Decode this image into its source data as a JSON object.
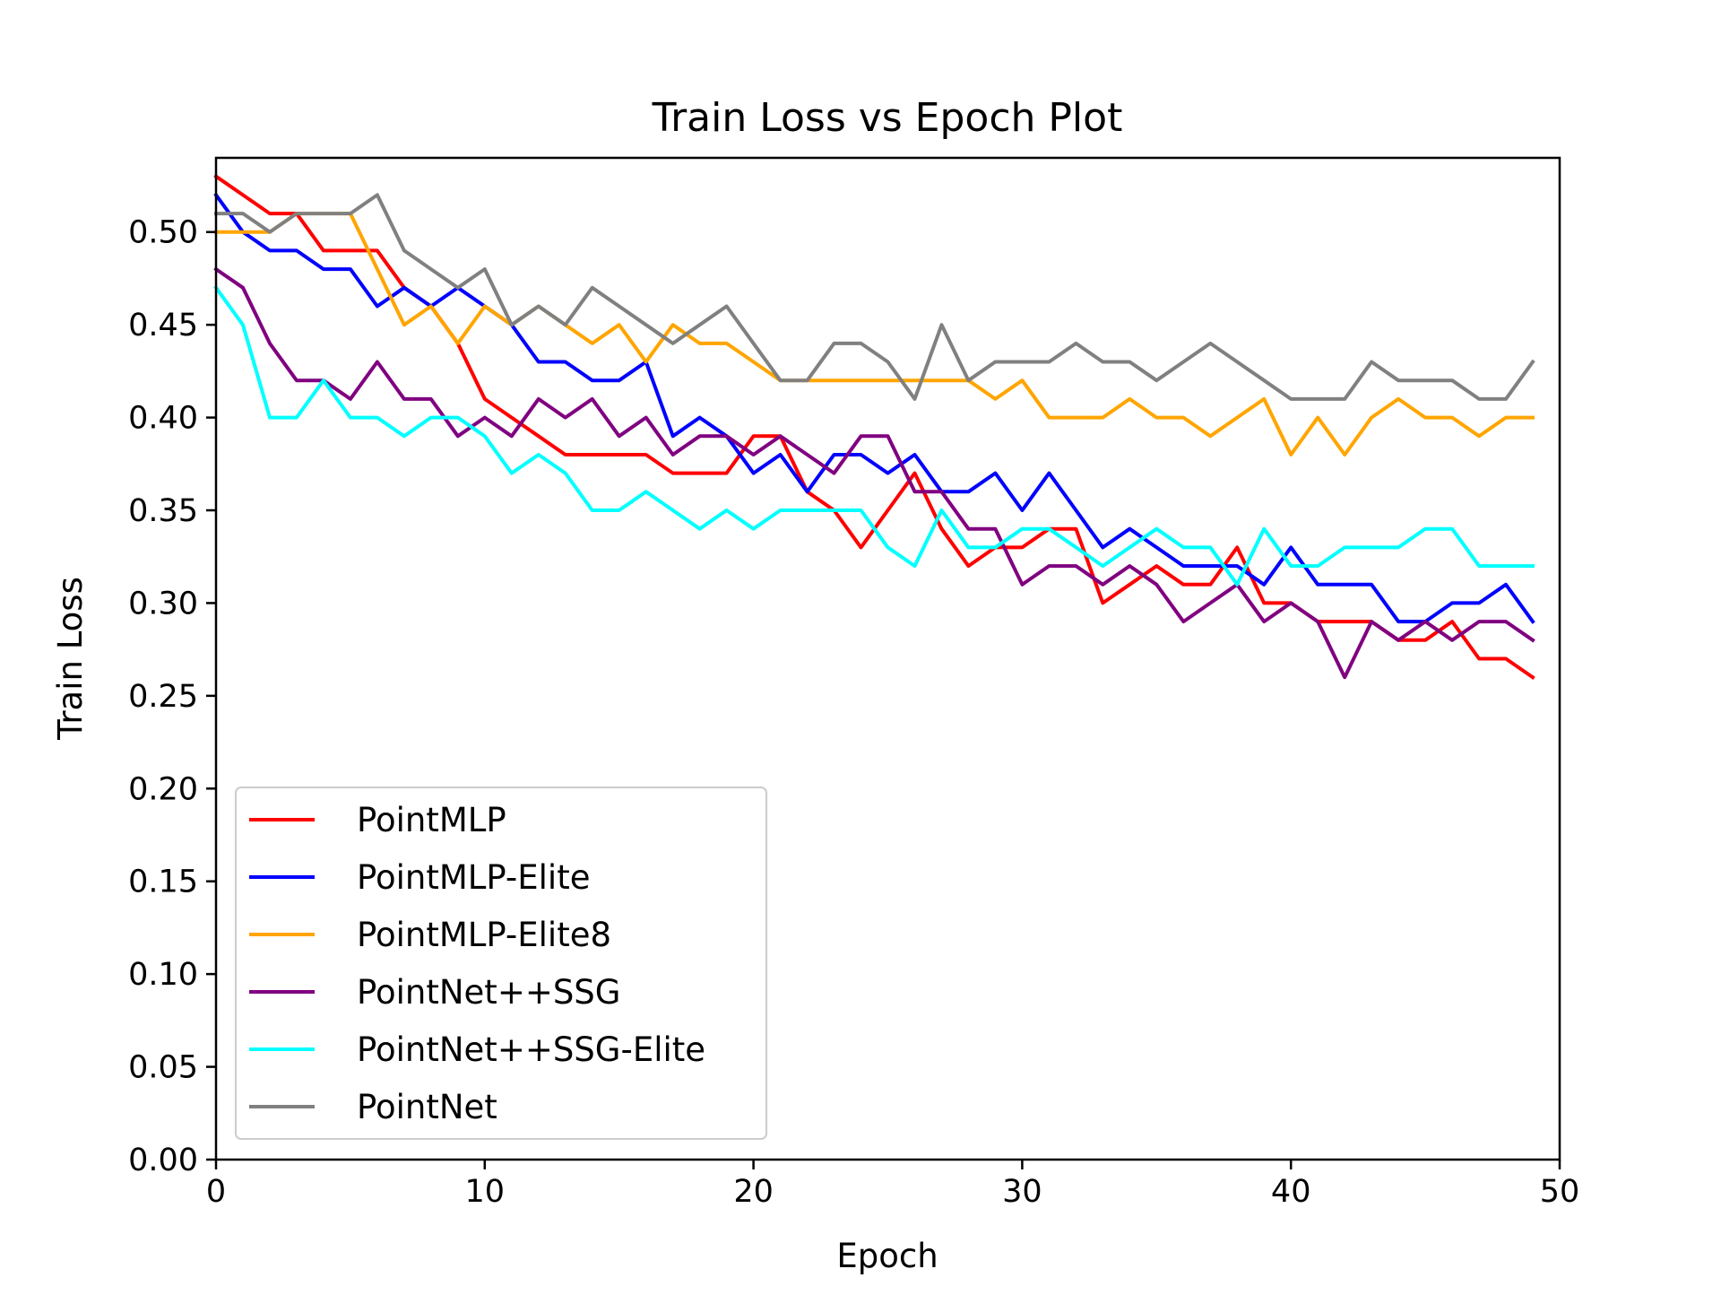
{
  "chart_data": {
    "type": "line",
    "title": "Train Loss vs Epoch Plot",
    "xlabel": "Epoch",
    "ylabel": "Train Loss",
    "xlim": [
      0,
      50
    ],
    "ylim": [
      0,
      0.54
    ],
    "xticks": [
      0,
      10,
      20,
      30,
      40,
      50
    ],
    "xtick_labels": [
      "0",
      "10",
      "20",
      "30",
      "40",
      "50"
    ],
    "yticks": [
      0,
      0.05,
      0.1,
      0.15,
      0.2,
      0.25,
      0.3,
      0.35,
      0.4,
      0.45,
      0.5
    ],
    "ytick_labels": [
      "0.00",
      "0.05",
      "0.10",
      "0.15",
      "0.20",
      "0.25",
      "0.30",
      "0.35",
      "0.40",
      "0.45",
      "0.50"
    ],
    "grid": false,
    "legend_position": "lower-left",
    "x": [
      0,
      1,
      2,
      3,
      4,
      5,
      6,
      7,
      8,
      9,
      10,
      11,
      12,
      13,
      14,
      15,
      16,
      17,
      18,
      19,
      20,
      21,
      22,
      23,
      24,
      25,
      26,
      27,
      28,
      29,
      30,
      31,
      32,
      33,
      34,
      35,
      36,
      37,
      38,
      39,
      40,
      41,
      42,
      43,
      44,
      45,
      46,
      47,
      48,
      49
    ],
    "series": [
      {
        "name": "PointMLP",
        "color": "#ff0000",
        "values": [
          0.53,
          0.52,
          0.51,
          0.51,
          0.49,
          0.49,
          0.49,
          0.47,
          0.46,
          0.44,
          0.41,
          0.4,
          0.39,
          0.38,
          0.38,
          0.38,
          0.38,
          0.37,
          0.37,
          0.37,
          0.39,
          0.39,
          0.36,
          0.35,
          0.33,
          0.35,
          0.37,
          0.34,
          0.32,
          0.33,
          0.33,
          0.34,
          0.34,
          0.3,
          0.31,
          0.32,
          0.31,
          0.31,
          0.33,
          0.3,
          0.3,
          0.29,
          0.29,
          0.29,
          0.28,
          0.28,
          0.29,
          0.27,
          0.27,
          0.26
        ]
      },
      {
        "name": "PointMLP-Elite",
        "color": "#0000ff",
        "values": [
          0.52,
          0.5,
          0.49,
          0.49,
          0.48,
          0.48,
          0.46,
          0.47,
          0.46,
          0.47,
          0.46,
          0.45,
          0.43,
          0.43,
          0.42,
          0.42,
          0.43,
          0.39,
          0.4,
          0.39,
          0.37,
          0.38,
          0.36,
          0.38,
          0.38,
          0.37,
          0.38,
          0.36,
          0.36,
          0.37,
          0.35,
          0.37,
          0.35,
          0.33,
          0.34,
          0.33,
          0.32,
          0.32,
          0.32,
          0.31,
          0.33,
          0.31,
          0.31,
          0.31,
          0.29,
          0.29,
          0.3,
          0.3,
          0.31,
          0.29
        ]
      },
      {
        "name": "PointMLP-Elite8",
        "color": "#ffa500",
        "values": [
          0.5,
          0.5,
          0.5,
          0.51,
          0.51,
          0.51,
          0.48,
          0.45,
          0.46,
          0.44,
          0.46,
          0.45,
          0.46,
          0.45,
          0.44,
          0.45,
          0.43,
          0.45,
          0.44,
          0.44,
          0.43,
          0.42,
          0.42,
          0.42,
          0.42,
          0.42,
          0.42,
          0.42,
          0.42,
          0.41,
          0.42,
          0.4,
          0.4,
          0.4,
          0.41,
          0.4,
          0.4,
          0.39,
          0.4,
          0.41,
          0.38,
          0.4,
          0.38,
          0.4,
          0.41,
          0.4,
          0.4,
          0.39,
          0.4,
          0.4
        ]
      },
      {
        "name": "PointNet++SSG",
        "color": "#800080",
        "values": [
          0.48,
          0.47,
          0.44,
          0.42,
          0.42,
          0.41,
          0.43,
          0.41,
          0.41,
          0.39,
          0.4,
          0.39,
          0.41,
          0.4,
          0.41,
          0.39,
          0.4,
          0.38,
          0.39,
          0.39,
          0.38,
          0.39,
          0.38,
          0.37,
          0.39,
          0.39,
          0.36,
          0.36,
          0.34,
          0.34,
          0.31,
          0.32,
          0.32,
          0.31,
          0.32,
          0.31,
          0.29,
          0.3,
          0.31,
          0.29,
          0.3,
          0.29,
          0.26,
          0.29,
          0.28,
          0.29,
          0.28,
          0.29,
          0.29,
          0.28
        ]
      },
      {
        "name": "PointNet++SSG-Elite",
        "color": "#00ffff",
        "values": [
          0.47,
          0.45,
          0.4,
          0.4,
          0.42,
          0.4,
          0.4,
          0.39,
          0.4,
          0.4,
          0.39,
          0.37,
          0.38,
          0.37,
          0.35,
          0.35,
          0.36,
          0.35,
          0.34,
          0.35,
          0.34,
          0.35,
          0.35,
          0.35,
          0.35,
          0.33,
          0.32,
          0.35,
          0.33,
          0.33,
          0.34,
          0.34,
          0.33,
          0.32,
          0.33,
          0.34,
          0.33,
          0.33,
          0.31,
          0.34,
          0.32,
          0.32,
          0.33,
          0.33,
          0.33,
          0.34,
          0.34,
          0.32,
          0.32,
          0.32
        ]
      },
      {
        "name": "PointNet",
        "color": "#808080",
        "values": [
          0.51,
          0.51,
          0.5,
          0.51,
          0.51,
          0.51,
          0.52,
          0.49,
          0.48,
          0.47,
          0.48,
          0.45,
          0.46,
          0.45,
          0.47,
          0.46,
          0.45,
          0.44,
          0.45,
          0.46,
          0.44,
          0.42,
          0.42,
          0.44,
          0.44,
          0.43,
          0.41,
          0.45,
          0.42,
          0.43,
          0.43,
          0.43,
          0.44,
          0.43,
          0.43,
          0.42,
          0.43,
          0.44,
          0.43,
          0.42,
          0.41,
          0.41,
          0.41,
          0.43,
          0.42,
          0.42,
          0.42,
          0.41,
          0.41,
          0.43
        ]
      }
    ]
  }
}
